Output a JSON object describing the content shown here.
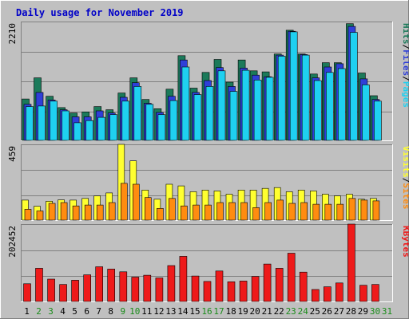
{
  "chart_data": {
    "type": "bar",
    "title": "Daily usage for November 2019",
    "colors": {
      "background": "#c0c0c0",
      "panel": "#c0c0c0",
      "hits": "#1b7a5a",
      "files": "#2f3fd8",
      "pages": "#1fd0f0",
      "visits": "#ffff30",
      "sites": "#ff8c10",
      "kbytes": "#ee1a1a",
      "title": "#0000c8",
      "weekend": "#1a8c1a",
      "weekday": "#000000"
    },
    "x": {
      "labels": [
        "1",
        "2",
        "3",
        "4",
        "5",
        "6",
        "7",
        "8",
        "9",
        "10",
        "11",
        "12",
        "13",
        "14",
        "15",
        "16",
        "17",
        "18",
        "19",
        "20",
        "21",
        "22",
        "23",
        "24",
        "25",
        "26",
        "27",
        "28",
        "29",
        "30",
        "31"
      ],
      "weekend": [
        false,
        true,
        true,
        false,
        false,
        false,
        false,
        false,
        true,
        true,
        false,
        false,
        false,
        false,
        false,
        true,
        true,
        false,
        false,
        false,
        false,
        false,
        true,
        true,
        false,
        false,
        false,
        false,
        false,
        true,
        true
      ]
    },
    "panels": [
      {
        "id": "hits-files-pages",
        "max_label": "2210",
        "ymax": 2210,
        "legend": [
          {
            "text": "Pages",
            "color": "#1fd0f0"
          },
          {
            "text": "/",
            "color": "#000000"
          },
          {
            "text": "Files",
            "color": "#2f3fd8"
          },
          {
            "text": "/",
            "color": "#000000"
          },
          {
            "text": "Hits",
            "color": "#1b7a5a"
          }
        ],
        "series": [
          {
            "key": "hits",
            "values": [
              780,
              1170,
              830,
              620,
              520,
              540,
              640,
              580,
              890,
              1170,
              770,
              600,
              960,
              1580,
              980,
              1270,
              1510,
              1090,
              1500,
              1300,
              1280,
              1610,
              2050,
              1610,
              1240,
              1450,
              1450,
              2170,
              1260,
              840,
              0
            ]
          },
          {
            "key": "files",
            "values": [
              680,
              900,
              760,
              580,
              450,
              450,
              560,
              520,
              810,
              1080,
              700,
              530,
              830,
              1500,
              900,
              1120,
              1360,
              1010,
              1350,
              1220,
              1190,
              1590,
              2030,
              1600,
              1170,
              1370,
              1430,
              2120,
              1150,
              770,
              0
            ]
          },
          {
            "key": "pages",
            "values": [
              640,
              650,
              740,
              560,
              340,
              380,
              440,
              490,
              740,
              1010,
              680,
              490,
              750,
              1370,
              860,
              1010,
              1300,
              920,
              1310,
              1130,
              1180,
              1570,
              2020,
              1590,
              1120,
              1270,
              1340,
              2010,
              1040,
              740,
              0
            ]
          }
        ]
      },
      {
        "id": "visits-sites",
        "max_label": "459",
        "ymax": 459,
        "legend": [
          {
            "text": "Sites",
            "color": "#ff8c10"
          },
          {
            "text": "/",
            "color": "#000000"
          },
          {
            "text": "Visits",
            "color": "#ffff30"
          }
        ],
        "series": [
          {
            "key": "visits",
            "values": [
              125,
              88,
              118,
              126,
              125,
              135,
              150,
              168,
              459,
              360,
              185,
              130,
              220,
              210,
              175,
              185,
              180,
              160,
              185,
              185,
              195,
              200,
              175,
              185,
              180,
              160,
              150,
              160,
              130,
              135,
              0
            ]
          },
          {
            "key": "sites",
            "values": [
              70,
              60,
              105,
              110,
              90,
              95,
              95,
              110,
              225,
              220,
              140,
              75,
              135,
              90,
              95,
              95,
              110,
              110,
              110,
              80,
              110,
              125,
              105,
              110,
              100,
              100,
              100,
              135,
              125,
              120,
              0
            ]
          }
        ]
      },
      {
        "id": "kbytes",
        "max_label": "202452",
        "ymax": 202452,
        "legend": [
          {
            "text": "KBytes",
            "color": "#ee1a1a"
          }
        ],
        "series": [
          {
            "key": "kbytes",
            "values": [
              48000,
              88000,
              60000,
              46000,
              57000,
              71000,
              92000,
              86000,
              79000,
              65000,
              70000,
              63000,
              95000,
              119000,
              68000,
              54000,
              81000,
              53000,
              55000,
              67000,
              99000,
              88000,
              127000,
              78000,
              33000,
              40000,
              50000,
              202452,
              44000,
              46000,
              0
            ]
          }
        ]
      }
    ]
  }
}
